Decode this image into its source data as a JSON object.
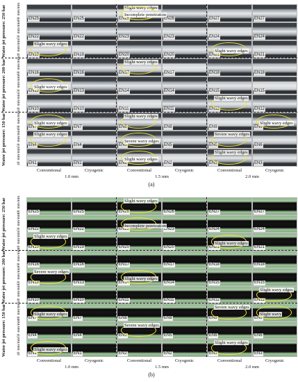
{
  "panels": [
    {
      "id": "a",
      "caption": "(a)",
      "style": "photo",
      "groups": [
        {
          "pressure_label": "Water jet pressure: 250 bar",
          "rows": [
            "60",
            "50",
            "40"
          ]
        },
        {
          "pressure_label": "Water jet pressure: 200 bar",
          "rows": [
            "60",
            "50",
            "40"
          ]
        },
        {
          "pressure_label": "Water jet pressure: 150 bar",
          "rows": [
            "60",
            "50",
            "40"
          ]
        }
      ],
      "speed_unit": "mm/min",
      "column_labels": [
        "Conventional",
        "Cryogenic",
        "Conventional",
        "Cryogenic",
        "Conventional",
        "Cryogenic"
      ],
      "width_labels": [
        "1.0 mm",
        "1.5 mm",
        "2.0 mm"
      ],
      "cells": [
        [
          "EN25",
          "EN25",
          "EN26",
          "EN26",
          "EN27",
          "EN27"
        ],
        [
          "EN22",
          "EN22",
          "EN23",
          "EN23",
          "EN24",
          "EN24"
        ],
        [
          "EN19",
          "EN19",
          "EN20",
          "EN20",
          "EN21",
          "EN21"
        ],
        [
          "EN16",
          "EN16",
          "EN17",
          "EN17",
          "EN18",
          "EN18"
        ],
        [
          "EN13",
          "EN13",
          "EN14",
          "EN14",
          "EN15",
          "EN15"
        ],
        [
          "EN10",
          "EN10",
          "EN11",
          "EN11",
          "EN12",
          "EN12"
        ],
        [
          "EN7",
          "EN7",
          "EN8",
          "EN8",
          "EN9",
          "EN9"
        ],
        [
          "EN4",
          "EN4",
          "EN5",
          "EN5",
          "EN6",
          "EN6"
        ],
        [
          "EN1",
          "EN1",
          "EN2",
          "EN2",
          "EN3",
          "EN3"
        ]
      ],
      "annotations": [
        {
          "text": "Slight wavy edges",
          "row": 0,
          "col": 2
        },
        {
          "text": "Incomplete penetration",
          "row": 0,
          "col": 2
        },
        {
          "text": "Slight wavy edges",
          "row": 2,
          "col": 0
        },
        {
          "text": "Slight wavy edges",
          "row": 2,
          "col": 4
        },
        {
          "text": "Slight wavy edges",
          "row": 3,
          "col": 2
        },
        {
          "text": "Slight wavy edges",
          "row": 4,
          "col": 0
        },
        {
          "text": "Slight wavy edges",
          "row": 5,
          "col": 4
        },
        {
          "text": "Slight wavy edges",
          "row": 6,
          "col": 0
        },
        {
          "text": "Slight wavy edges",
          "row": 6,
          "col": 2
        },
        {
          "text": "Slight wavy edges",
          "row": 6,
          "col": 5
        },
        {
          "text": "Slight wavy edges",
          "row": 7,
          "col": 0
        },
        {
          "text": "Severe wavy edges",
          "row": 7,
          "col": 2
        },
        {
          "text": "Severe wavy edges",
          "row": 7,
          "col": 4
        },
        {
          "text": "Slight wavy edges",
          "row": 8,
          "col": 2
        },
        {
          "text": "Slight wavy edges",
          "row": 8,
          "col": 4
        }
      ]
    },
    {
      "id": "b",
      "caption": "(b)",
      "style": "binary",
      "groups": [
        {
          "pressure_label": "Water jet pressure: 250 bar",
          "rows": [
            "60",
            "50",
            "40"
          ]
        },
        {
          "pressure_label": "Water jet pressure: 200 bar",
          "rows": [
            "60",
            "50",
            "40"
          ]
        },
        {
          "pressure_label": "Water jet pressure: 150 bar",
          "rows": [
            "60",
            "50",
            "40"
          ]
        }
      ],
      "speed_unit": "mm/min",
      "column_labels": [
        "Conventional",
        "Cryogenic",
        "Conventional",
        "Cryogenic",
        "Conventional",
        "Cryogenic"
      ],
      "width_labels": [
        "1.0 mm",
        "1.5 mm",
        "2.0 mm"
      ],
      "cells": [
        [
          "EN25",
          "EN25",
          "EN26",
          "EN26",
          "EN27",
          "EN27"
        ],
        [
          "EN22",
          "EN22",
          "EN23",
          "EN23",
          "EN24",
          "EN24"
        ],
        [
          "EN19",
          "EN19",
          "EN20",
          "EN20",
          "EN21",
          "EN21"
        ],
        [
          "EN16",
          "EN16",
          "EN17",
          "EN17",
          "EN18",
          "EN18"
        ],
        [
          "EN13",
          "EN13",
          "EN14",
          "EN14",
          "EN15",
          "EN15"
        ],
        [
          "EN10",
          "EN10",
          "EN11",
          "EN11",
          "EN12",
          "EN12"
        ],
        [
          "EN7",
          "EN7",
          "EN8",
          "EN8",
          "EN9",
          "EN9"
        ],
        [
          "EN4",
          "EN4",
          "EN5",
          "EN5",
          "EN6",
          "EN6"
        ],
        [
          "EN1",
          "EN1",
          "EN2",
          "EN2",
          "EN3",
          "EN3"
        ]
      ],
      "annotations": [
        {
          "text": "Slight wavy edges",
          "row": 0,
          "col": 2
        },
        {
          "text": "Incomplete penetration",
          "row": 1,
          "col": 2
        },
        {
          "text": "Slight wavy edges",
          "row": 2,
          "col": 0
        },
        {
          "text": "Slight wavy edges",
          "row": 2,
          "col": 4
        },
        {
          "text": "Severe wavy edges",
          "row": 4,
          "col": 0
        },
        {
          "text": "Slight wavy edges",
          "row": 4,
          "col": 2
        },
        {
          "text": "Slight wavy edges",
          "row": 5,
          "col": 5
        },
        {
          "text": "Slight wavy edges",
          "row": 6,
          "col": 0
        },
        {
          "text": "Severe wavy edges",
          "row": 6,
          "col": 4
        },
        {
          "text": "Slight wavy",
          "row": 6,
          "col": 5
        },
        {
          "text": "Severe wavy edges",
          "row": 7,
          "col": 2
        },
        {
          "text": "Slight wavy edges",
          "row": 8,
          "col": 0
        },
        {
          "text": "Slight wavy edges",
          "row": 8,
          "col": 4
        }
      ]
    }
  ]
}
